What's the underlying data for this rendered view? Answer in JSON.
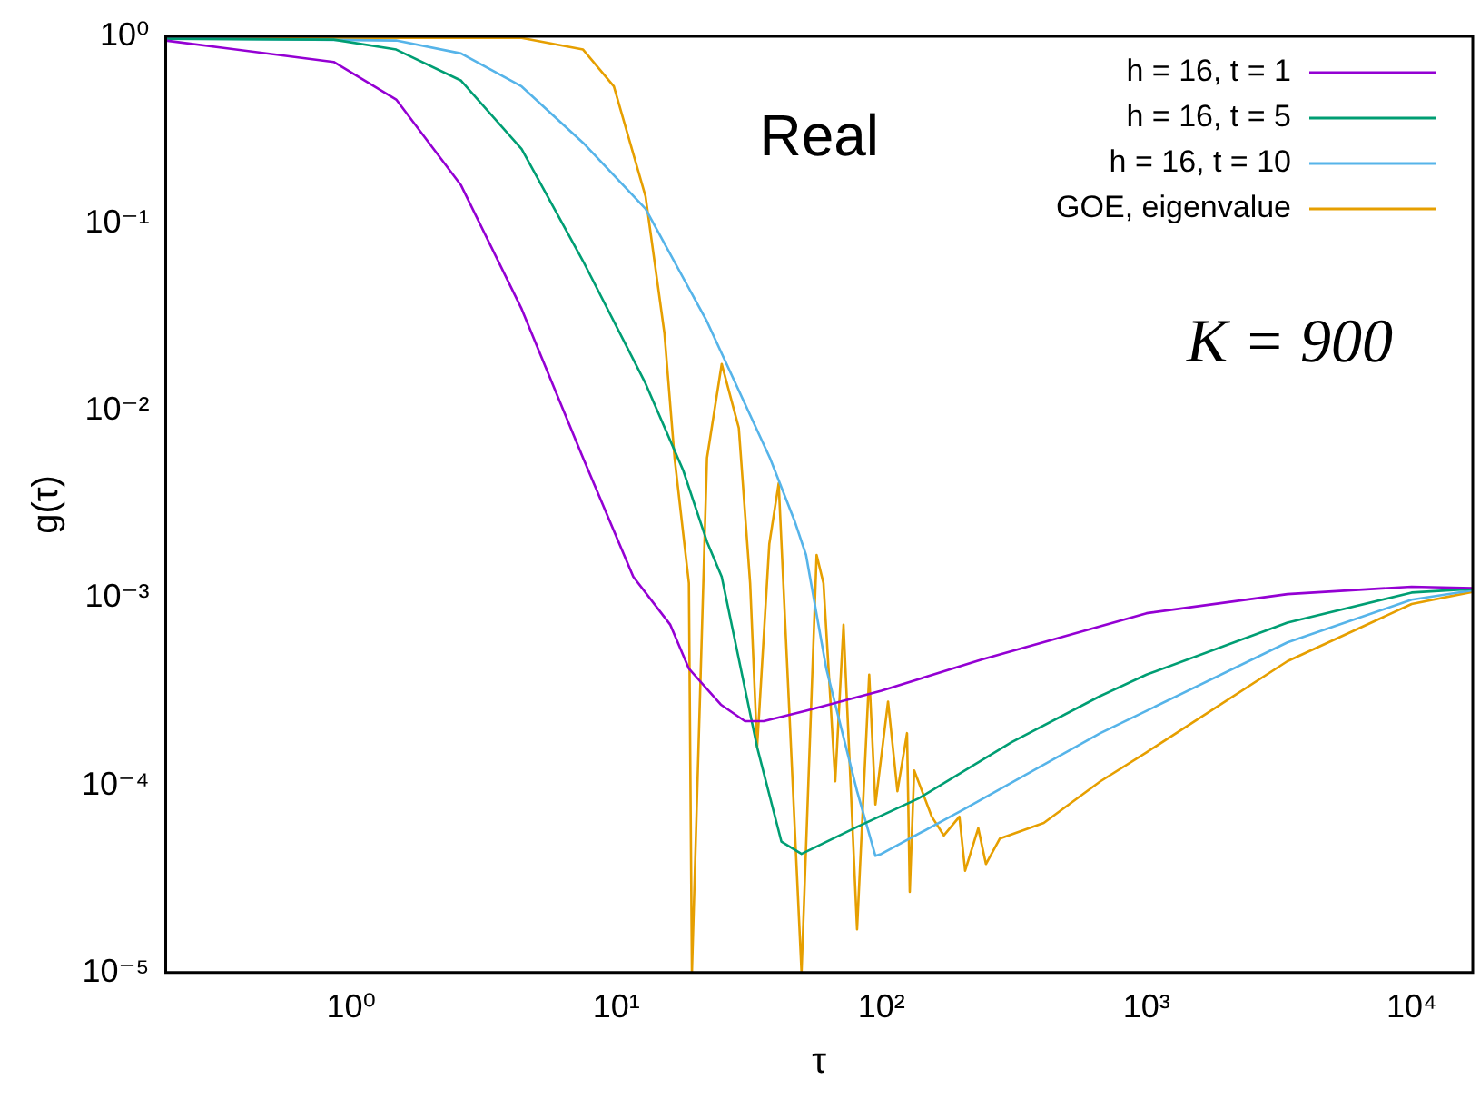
{
  "chart_data": {
    "type": "line",
    "xlabel": "τ",
    "ylabel": "g(τ)",
    "log": "xy",
    "legend": "top right",
    "marker": "none",
    "grid": false,
    "xlim": [
      0.2,
      17000
    ],
    "xticks": [
      {
        "value": 1,
        "label": "10⁰"
      },
      {
        "value": 10,
        "label": "10¹"
      },
      {
        "value": 100,
        "label": "10²"
      },
      {
        "value": 1000,
        "label": "10³"
      },
      {
        "value": 10000,
        "label": "10⁴"
      }
    ],
    "ylim": [
      1e-05,
      1
    ],
    "yticks": [
      {
        "value": 1e-05,
        "label": "10⁻⁵"
      },
      {
        "value": 0.0001,
        "label": "10⁻⁴"
      },
      {
        "value": 0.001,
        "label": "10⁻³"
      },
      {
        "value": 0.01,
        "label": "10⁻²"
      },
      {
        "value": 0.1,
        "label": "10⁻¹"
      },
      {
        "value": 1,
        "label": "10⁰"
      }
    ],
    "annotations": [
      "Real",
      "K = 900"
    ],
    "series": [
      {
        "name": "h = 16, t = 1",
        "color": "#9400d3",
        "x": [
          0.2,
          0.86,
          1.48,
          2.6,
          4.4,
          7.5,
          11.6,
          16,
          18.8,
          24.8,
          30.6,
          36,
          52,
          100,
          240,
          1000,
          3400,
          10000,
          17000
        ],
        "values": [
          0.95,
          0.73,
          0.46,
          0.16,
          0.035,
          0.0056,
          0.0013,
          0.00072,
          0.00042,
          0.00027,
          0.00022,
          0.00022,
          0.00025,
          0.00032,
          0.00047,
          0.00083,
          0.00105,
          0.00115,
          0.00113
        ]
      },
      {
        "name": "h = 16, t = 5",
        "color": "#009e73",
        "x": [
          0.2,
          0.86,
          1.48,
          2.6,
          4.4,
          7.5,
          12.9,
          17.9,
          22,
          25,
          34,
          42,
          50,
          81,
          138,
          310,
          670,
          1000,
          3400,
          10000,
          17000
        ],
        "values": [
          0.97,
          0.96,
          0.85,
          0.58,
          0.25,
          0.063,
          0.014,
          0.0048,
          0.002,
          0.0013,
          0.00016,
          5e-05,
          4.3e-05,
          6e-05,
          8.5e-05,
          0.00017,
          0.0003,
          0.00039,
          0.00074,
          0.00107,
          0.00112
        ]
      },
      {
        "name": "h = 16, t = 10",
        "color": "#56b4e9",
        "x": [
          0.2,
          1.48,
          2.6,
          4.4,
          7.5,
          12.9,
          22,
          38,
          47,
          52,
          62,
          81,
          95,
          100,
          203,
          670,
          1000,
          3400,
          10000,
          17000
        ],
        "values": [
          0.98,
          0.95,
          0.81,
          0.54,
          0.27,
          0.12,
          0.03,
          0.0056,
          0.0026,
          0.0017,
          0.00042,
          9.3e-05,
          4.2e-05,
          4.3e-05,
          7.4e-05,
          0.00019,
          0.00025,
          0.00058,
          0.00098,
          0.0011
        ]
      },
      {
        "name": "GOE, eigenvalue",
        "color": "#e69f00",
        "x": [
          0.2,
          4.4,
          7.5,
          9.8,
          12.9,
          15.2,
          16.6,
          18.8,
          19.3,
          22,
          25,
          29,
          32,
          34,
          37.8,
          41,
          50,
          57,
          60.5,
          67,
          72,
          81,
          90,
          95,
          106,
          115,
          125,
          128,
          133,
          155,
          172,
          197,
          207,
          232,
          248,
          280,
          410,
          670,
          1000,
          3400,
          10000,
          17000
        ],
        "values": [
          0.98,
          0.98,
          0.85,
          0.54,
          0.14,
          0.026,
          0.0056,
          0.0012,
          1e-05,
          0.0056,
          0.0178,
          0.0081,
          0.0012,
          0.00016,
          0.00195,
          0.0041,
          1e-05,
          0.0017,
          0.0012,
          0.000105,
          0.00072,
          1.7e-05,
          0.00039,
          7.9e-05,
          0.00028,
          9.3e-05,
          0.00019,
          2.7e-05,
          0.00012,
          6.8e-05,
          5.4e-05,
          6.8e-05,
          3.5e-05,
          5.9e-05,
          3.8e-05,
          5.2e-05,
          6.3e-05,
          0.000105,
          0.00015,
          0.00046,
          0.00093,
          0.00108
        ]
      }
    ]
  }
}
